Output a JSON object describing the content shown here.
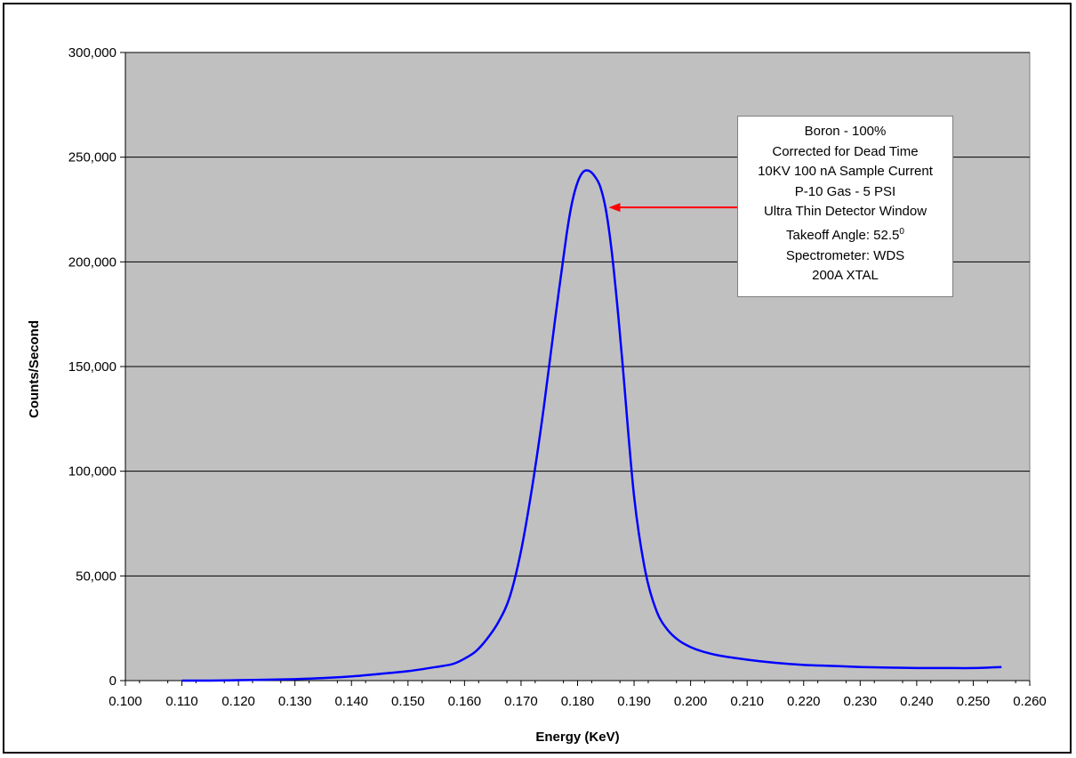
{
  "chart_data": {
    "type": "line",
    "title": "",
    "xlabel": "Energy (KeV)",
    "ylabel": "Counts/Second",
    "xlim": [
      0.1,
      0.26
    ],
    "ylim": [
      0,
      300000
    ],
    "x_ticks": [
      "0.100",
      "0.110",
      "0.120",
      "0.130",
      "0.140",
      "0.150",
      "0.160",
      "0.170",
      "0.180",
      "0.190",
      "0.200",
      "0.210",
      "0.220",
      "0.230",
      "0.240",
      "0.250",
      "0.260"
    ],
    "y_ticks": [
      "0",
      "50,000",
      "100,000",
      "150,000",
      "200,000",
      "250,000",
      "300,000"
    ],
    "grid": "horizontal",
    "background_color": "#c0c0c0",
    "line_color": "#0000ff",
    "arrow_color": "#ff0000",
    "series": [
      {
        "x": [
          0.11,
          0.115,
          0.12,
          0.125,
          0.13,
          0.135,
          0.14,
          0.145,
          0.15,
          0.155,
          0.158,
          0.16,
          0.162,
          0.164,
          0.166,
          0.168,
          0.17,
          0.172,
          0.174,
          0.176,
          0.178,
          0.179,
          0.18,
          0.181,
          0.182,
          0.183,
          0.184,
          0.185,
          0.186,
          0.187,
          0.188,
          0.19,
          0.192,
          0.194,
          0.196,
          0.198,
          0.2,
          0.202,
          0.205,
          0.21,
          0.215,
          0.22,
          0.225,
          0.23,
          0.235,
          0.24,
          0.245,
          0.25,
          0.255
        ],
        "y": [
          0,
          0,
          200,
          400,
          700,
          1200,
          2000,
          3200,
          4500,
          6500,
          8000,
          10500,
          14000,
          20000,
          28000,
          40000,
          62000,
          93000,
          130000,
          172000,
          212000,
          228000,
          238000,
          243000,
          243500,
          241000,
          236000,
          225000,
          206000,
          180000,
          150000,
          88000,
          52000,
          33000,
          24000,
          19000,
          16000,
          14000,
          12000,
          10000,
          8500,
          7500,
          7000,
          6500,
          6200,
          6000,
          6000,
          6000,
          6500
        ]
      }
    ],
    "annotation": {
      "lines": [
        "Boron - 100%",
        "Corrected for Dead Time",
        "10KV 100 nA Sample Current",
        "P-10 Gas - 5 PSI",
        "Ultra Thin Detector Window",
        "Takeoff Angle: 52.5",
        "Spectrometer: WDS",
        "200A XTAL"
      ],
      "superscript": "0",
      "arrow_target": {
        "x": 0.1855,
        "y": 226000
      }
    }
  }
}
